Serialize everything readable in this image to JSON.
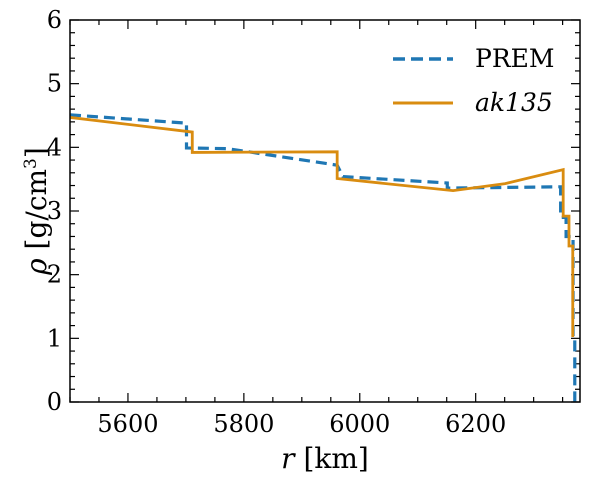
{
  "chart_data": {
    "type": "line",
    "xlabel_symbol": "r",
    "xlabel_unit": "[km]",
    "ylabel_symbol": "ρ",
    "ylabel_unit_prefix": "[g/cm",
    "ylabel_unit_exp": "3",
    "ylabel_unit_suffix": "]",
    "xlim": [
      5500,
      6380
    ],
    "ylim": [
      0,
      6
    ],
    "xticks": [
      5600,
      5800,
      6000,
      6200
    ],
    "yticks": [
      0,
      1,
      2,
      3,
      4,
      5,
      6
    ],
    "grid": false,
    "legend_position": "top-right",
    "series": [
      {
        "name": "PREM",
        "color": "#1f77b4",
        "style": "dashed",
        "x": [
          5500,
          5701,
          5701,
          5771,
          5961,
          5971,
          5971,
          6151,
          6151,
          6346.6,
          6346.6,
          6356,
          6356,
          6368,
          6368,
          6371,
          6371
        ],
        "y": [
          4.51,
          4.38,
          3.99,
          3.98,
          3.72,
          3.54,
          3.54,
          3.44,
          3.36,
          3.38,
          2.9,
          2.9,
          2.6,
          2.6,
          1.02,
          1.02,
          0.0
        ]
      },
      {
        "name": "ak135",
        "color": "#d98c10",
        "style": "solid",
        "x": [
          5500,
          5711,
          5711,
          5961,
          5961,
          6161,
          6251,
          6351,
          6351,
          6361,
          6361,
          6367.5,
          6367.5
        ],
        "y": [
          4.47,
          4.24,
          3.92,
          3.93,
          3.51,
          3.32,
          3.43,
          3.65,
          2.92,
          2.92,
          2.45,
          2.45,
          1.02
        ]
      }
    ]
  }
}
